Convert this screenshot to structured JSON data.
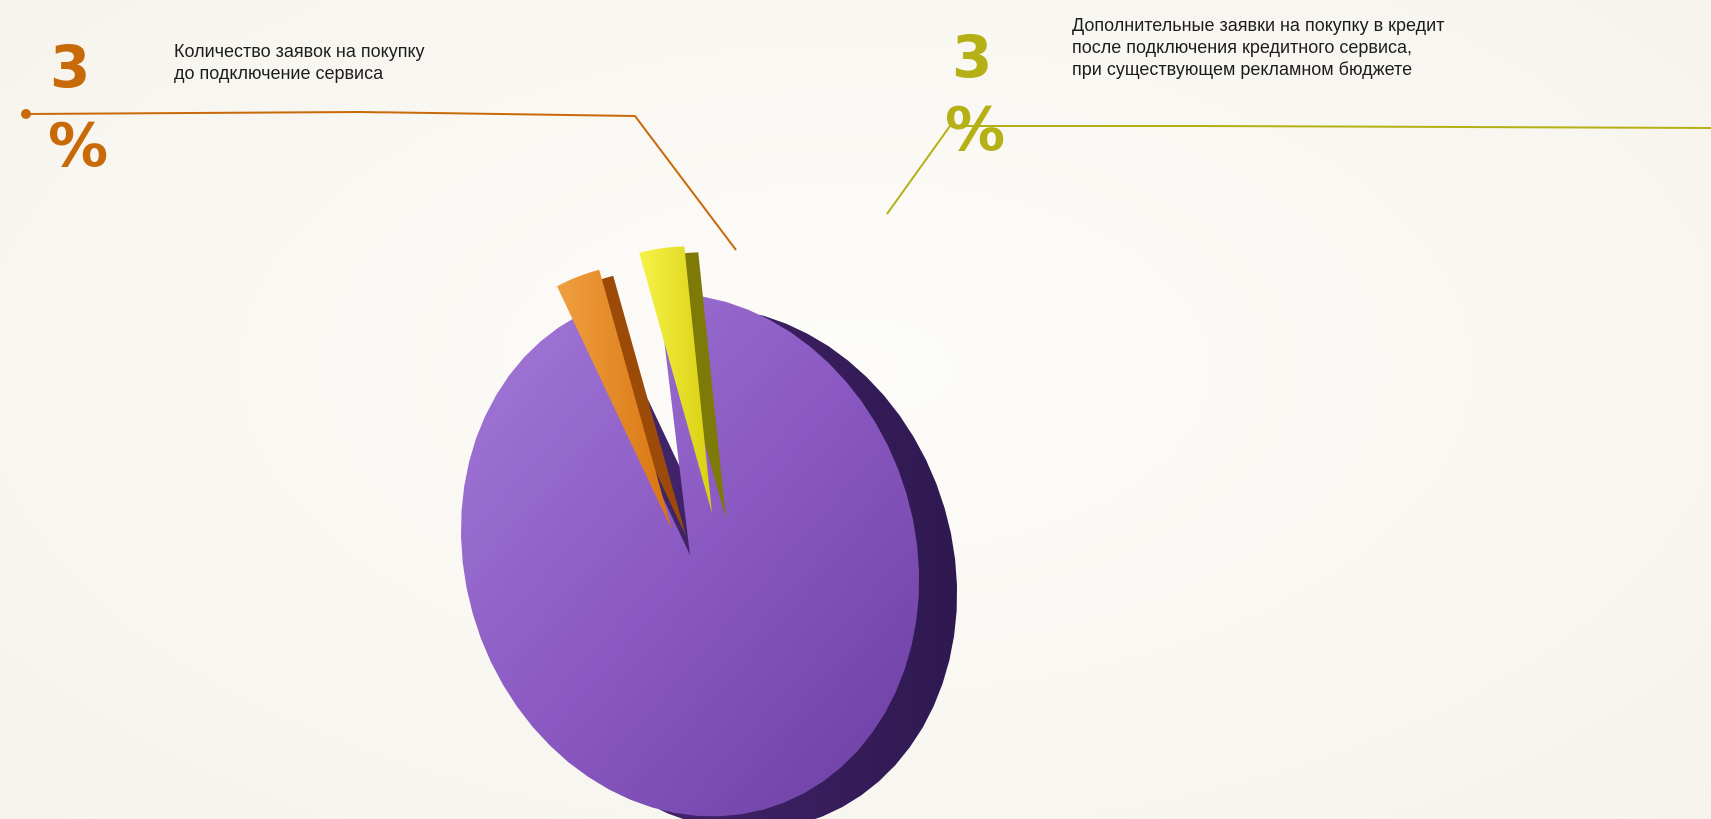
{
  "chart_data": {
    "type": "pie",
    "slices": [
      {
        "label": "",
        "value": 94,
        "color": "#8650bd"
      },
      {
        "label": "Количество заявок на покупку до подключение сервиса",
        "value": 3,
        "value_text": "3",
        "unit": "%",
        "color": "#e98a22"
      },
      {
        "label": "Дополнительные заявки на покупку в кредит после подключения кредитного сервиса, при существующем рекламном бюджете",
        "value": 3,
        "value_text": "3",
        "unit": "%",
        "color": "#e8e218"
      }
    ]
  },
  "annotations": {
    "left": {
      "value": "3",
      "unit": "%",
      "lines": [
        "Количество заявок на покупку",
        "до подключение сервиса"
      ],
      "color": "#c86a0a"
    },
    "right": {
      "value": "3",
      "unit": "%",
      "lines": [
        "Дополнительные заявки на покупку в кредит",
        "после подключения кредитного сервиса,",
        "при существующем рекламном бюджете"
      ],
      "color": "#b5b016"
    }
  }
}
